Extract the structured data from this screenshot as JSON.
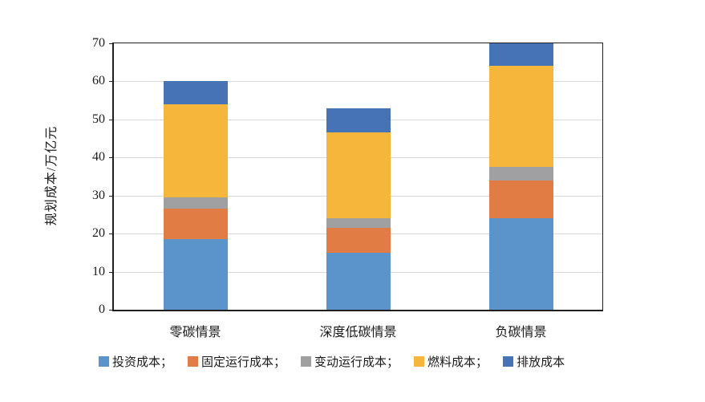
{
  "figure": {
    "background": "#ffffff"
  },
  "chart_data": {
    "type": "bar",
    "subtype": "stacked-vertical",
    "title": "",
    "xlabel": "",
    "ylabel": "规划成本/万亿元",
    "ylim": [
      0,
      70
    ],
    "yticks": [
      0,
      10,
      20,
      30,
      40,
      50,
      60,
      70
    ],
    "grid": "horizontal",
    "gridline_color": "#d9d9d9",
    "axis_color": "#1f1f1f",
    "legend_position": "bottom",
    "categories": [
      "零碳情景",
      "深度低碳情景",
      "负碳情景"
    ],
    "series": [
      {
        "key": "investment-cost",
        "name": "投资成本",
        "legend_label": "投资成本；",
        "color": "#5B93CB",
        "values": [
          18.5,
          15.0,
          24.0
        ]
      },
      {
        "key": "fixed-om-cost",
        "name": "固定运行成本",
        "legend_label": "固定运行成本；",
        "color": "#E17C45",
        "values": [
          8.0,
          6.5,
          10.0
        ]
      },
      {
        "key": "variable-om-cost",
        "name": "变动运行成本",
        "legend_label": "变动运行成本；",
        "color": "#A0A0A2",
        "values": [
          3.0,
          2.5,
          3.5
        ]
      },
      {
        "key": "fuel-cost",
        "name": "燃料成本",
        "legend_label": "燃料成本；",
        "color": "#F6B63C",
        "values": [
          24.5,
          22.5,
          26.5
        ]
      },
      {
        "key": "emission-cost",
        "name": "排放成本",
        "legend_label": "排放成本",
        "color": "#4673B6",
        "values": [
          6.0,
          6.5,
          6.0
        ]
      }
    ],
    "bar_totals": [
      60,
      53,
      70
    ]
  }
}
